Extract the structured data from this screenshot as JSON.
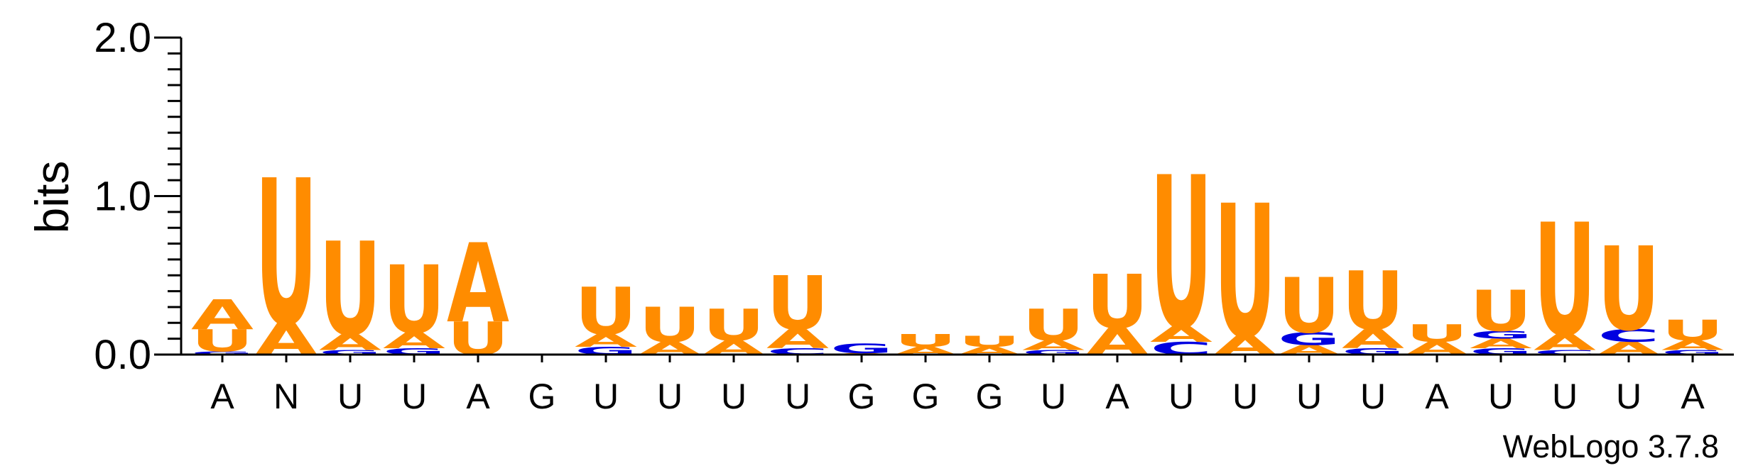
{
  "chart_data": {
    "type": "sequence-logo",
    "ylabel": "bits",
    "xlabel": "",
    "ylim": [
      0,
      2.0
    ],
    "y_ticks": [
      "0.0",
      "1.0",
      "2.0"
    ],
    "credit": "WebLogo 3.7.8",
    "colors": {
      "A": "#ff8c00",
      "U": "#ff8c00",
      "G": "#0000e0",
      "C": "#0000e0"
    },
    "positions": [
      {
        "label": "A",
        "stack": [
          {
            "letter": "G",
            "bits": 0.02
          },
          {
            "letter": "U",
            "bits": 0.14
          },
          {
            "letter": "A",
            "bits": 0.19
          }
        ]
      },
      {
        "label": "N",
        "stack": [
          {
            "letter": "A",
            "bits": 0.2
          },
          {
            "letter": "U",
            "bits": 0.92
          }
        ]
      },
      {
        "label": "U",
        "stack": [
          {
            "letter": "G",
            "bits": 0.03
          },
          {
            "letter": "A",
            "bits": 0.1
          },
          {
            "letter": "U",
            "bits": 0.59
          }
        ]
      },
      {
        "label": "U",
        "stack": [
          {
            "letter": "G",
            "bits": 0.04
          },
          {
            "letter": "A",
            "bits": 0.1
          },
          {
            "letter": "U",
            "bits": 0.43
          }
        ]
      },
      {
        "label": "A",
        "stack": [
          {
            "letter": "U",
            "bits": 0.21
          },
          {
            "letter": "A",
            "bits": 0.5
          }
        ]
      },
      {
        "label": "G",
        "stack": []
      },
      {
        "label": "U",
        "stack": [
          {
            "letter": "G",
            "bits": 0.05
          },
          {
            "letter": "A",
            "bits": 0.08
          },
          {
            "letter": "U",
            "bits": 0.3
          }
        ]
      },
      {
        "label": "U",
        "stack": [
          {
            "letter": "A",
            "bits": 0.08
          },
          {
            "letter": "U",
            "bits": 0.22
          }
        ]
      },
      {
        "label": "U",
        "stack": [
          {
            "letter": "A",
            "bits": 0.09
          },
          {
            "letter": "U",
            "bits": 0.2
          }
        ]
      },
      {
        "label": "U",
        "stack": [
          {
            "letter": "C",
            "bits": 0.04
          },
          {
            "letter": "A",
            "bits": 0.12
          },
          {
            "letter": "U",
            "bits": 0.34
          }
        ]
      },
      {
        "label": "G",
        "stack": [
          {
            "letter": "A",
            "bits": 0.01
          },
          {
            "letter": "G",
            "bits": 0.06
          }
        ]
      },
      {
        "label": "G",
        "stack": [
          {
            "letter": "A",
            "bits": 0.05
          },
          {
            "letter": "U",
            "bits": 0.08
          }
        ]
      },
      {
        "label": "G",
        "stack": [
          {
            "letter": "A",
            "bits": 0.05
          },
          {
            "letter": "U",
            "bits": 0.07
          }
        ]
      },
      {
        "label": "U",
        "stack": [
          {
            "letter": "G",
            "bits": 0.03
          },
          {
            "letter": "A",
            "bits": 0.06
          },
          {
            "letter": "U",
            "bits": 0.2
          }
        ]
      },
      {
        "label": "A",
        "stack": [
          {
            "letter": "A",
            "bits": 0.17
          },
          {
            "letter": "U",
            "bits": 0.34
          }
        ]
      },
      {
        "label": "U",
        "stack": [
          {
            "letter": "C",
            "bits": 0.08
          },
          {
            "letter": "A",
            "bits": 0.1
          },
          {
            "letter": "U",
            "bits": 0.96
          }
        ]
      },
      {
        "label": "U",
        "stack": [
          {
            "letter": "A",
            "bits": 0.12
          },
          {
            "letter": "U",
            "bits": 0.84
          }
        ]
      },
      {
        "label": "U",
        "stack": [
          {
            "letter": "A",
            "bits": 0.06
          },
          {
            "letter": "G",
            "bits": 0.08
          },
          {
            "letter": "U",
            "bits": 0.35
          }
        ]
      },
      {
        "label": "U",
        "stack": [
          {
            "letter": "G",
            "bits": 0.04
          },
          {
            "letter": "A",
            "bits": 0.12
          },
          {
            "letter": "U",
            "bits": 0.37
          }
        ]
      },
      {
        "label": "A",
        "stack": [
          {
            "letter": "A",
            "bits": 0.08
          },
          {
            "letter": "U",
            "bits": 0.11
          }
        ]
      },
      {
        "label": "U",
        "stack": [
          {
            "letter": "G",
            "bits": 0.04
          },
          {
            "letter": "A",
            "bits": 0.06
          },
          {
            "letter": "G",
            "bits": 0.05
          },
          {
            "letter": "U",
            "bits": 0.26
          }
        ]
      },
      {
        "label": "U",
        "stack": [
          {
            "letter": "C",
            "bits": 0.03
          },
          {
            "letter": "A",
            "bits": 0.1
          },
          {
            "letter": "U",
            "bits": 0.71
          }
        ]
      },
      {
        "label": "U",
        "stack": [
          {
            "letter": "A",
            "bits": 0.08
          },
          {
            "letter": "C",
            "bits": 0.08
          },
          {
            "letter": "U",
            "bits": 0.53
          }
        ]
      },
      {
        "label": "A",
        "stack": [
          {
            "letter": "G",
            "bits": 0.03
          },
          {
            "letter": "A",
            "bits": 0.06
          },
          {
            "letter": "U",
            "bits": 0.13
          }
        ]
      }
    ]
  }
}
